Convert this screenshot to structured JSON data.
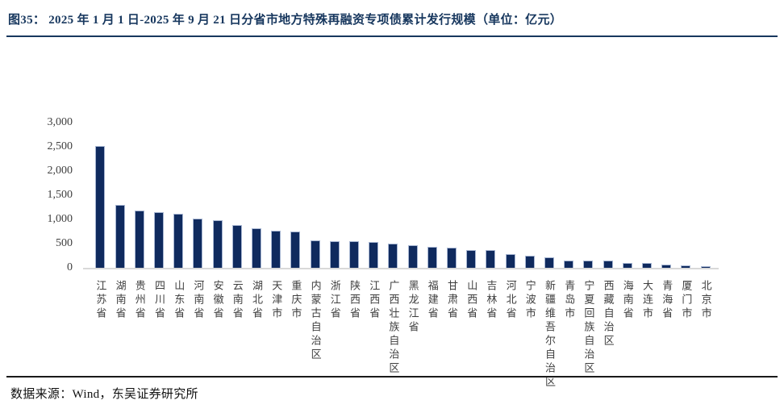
{
  "header": {
    "title": "图35：  2025 年 1 月 1 日-2025 年 9 月 21 日分省市地方特殊再融资专项债累计发行规模（单位：亿元）"
  },
  "footer": {
    "source": "数据来源：Wind，东吴证券研究所"
  },
  "colors": {
    "navy_accent": "#17375E",
    "bar_fill": "#0F2A5E",
    "bar_edge": "#A7B6D2",
    "axis_line": "#D9D9D9",
    "tick_text": "#404040",
    "footer_rule": "#1a1a1a"
  },
  "chart_data": {
    "type": "bar",
    "title": "2025年1月1日-2025年9月21日分省市地方特殊再融资专项债累计发行规模",
    "unit": "亿元",
    "categories": [
      "江苏省",
      "湖南省",
      "贵州省",
      "四川省",
      "山东省",
      "河南省",
      "安徽省",
      "云南省",
      "湖北省",
      "天津市",
      "重庆市",
      "内蒙古自治区",
      "浙江省",
      "陕西省",
      "江西省",
      "广西壮族自治区",
      "黑龙江省",
      "福建省",
      "甘肃省",
      "山西省",
      "吉林省",
      "河北省",
      "宁波市",
      "新疆维吾尔自治区",
      "青岛市",
      "宁夏回族自治区",
      "西藏自治区",
      "海南省",
      "大连市",
      "青海省",
      "厦门市",
      "北京市"
    ],
    "values": [
      2510,
      1295,
      1180,
      1150,
      1115,
      1010,
      985,
      880,
      810,
      770,
      750,
      560,
      550,
      545,
      535,
      500,
      475,
      430,
      425,
      370,
      360,
      285,
      250,
      210,
      150,
      147,
      144,
      108,
      97,
      65,
      48,
      35
    ],
    "ylim": [
      0,
      3000
    ],
    "yticks": [
      0,
      500,
      1000,
      1500,
      2000,
      2500,
      3000
    ],
    "ytick_labels": [
      "0",
      "500",
      "1,000",
      "1,500",
      "2,000",
      "2,500",
      "3,000"
    ],
    "grid": false,
    "legend": false,
    "bar_orientation": "vertical"
  }
}
